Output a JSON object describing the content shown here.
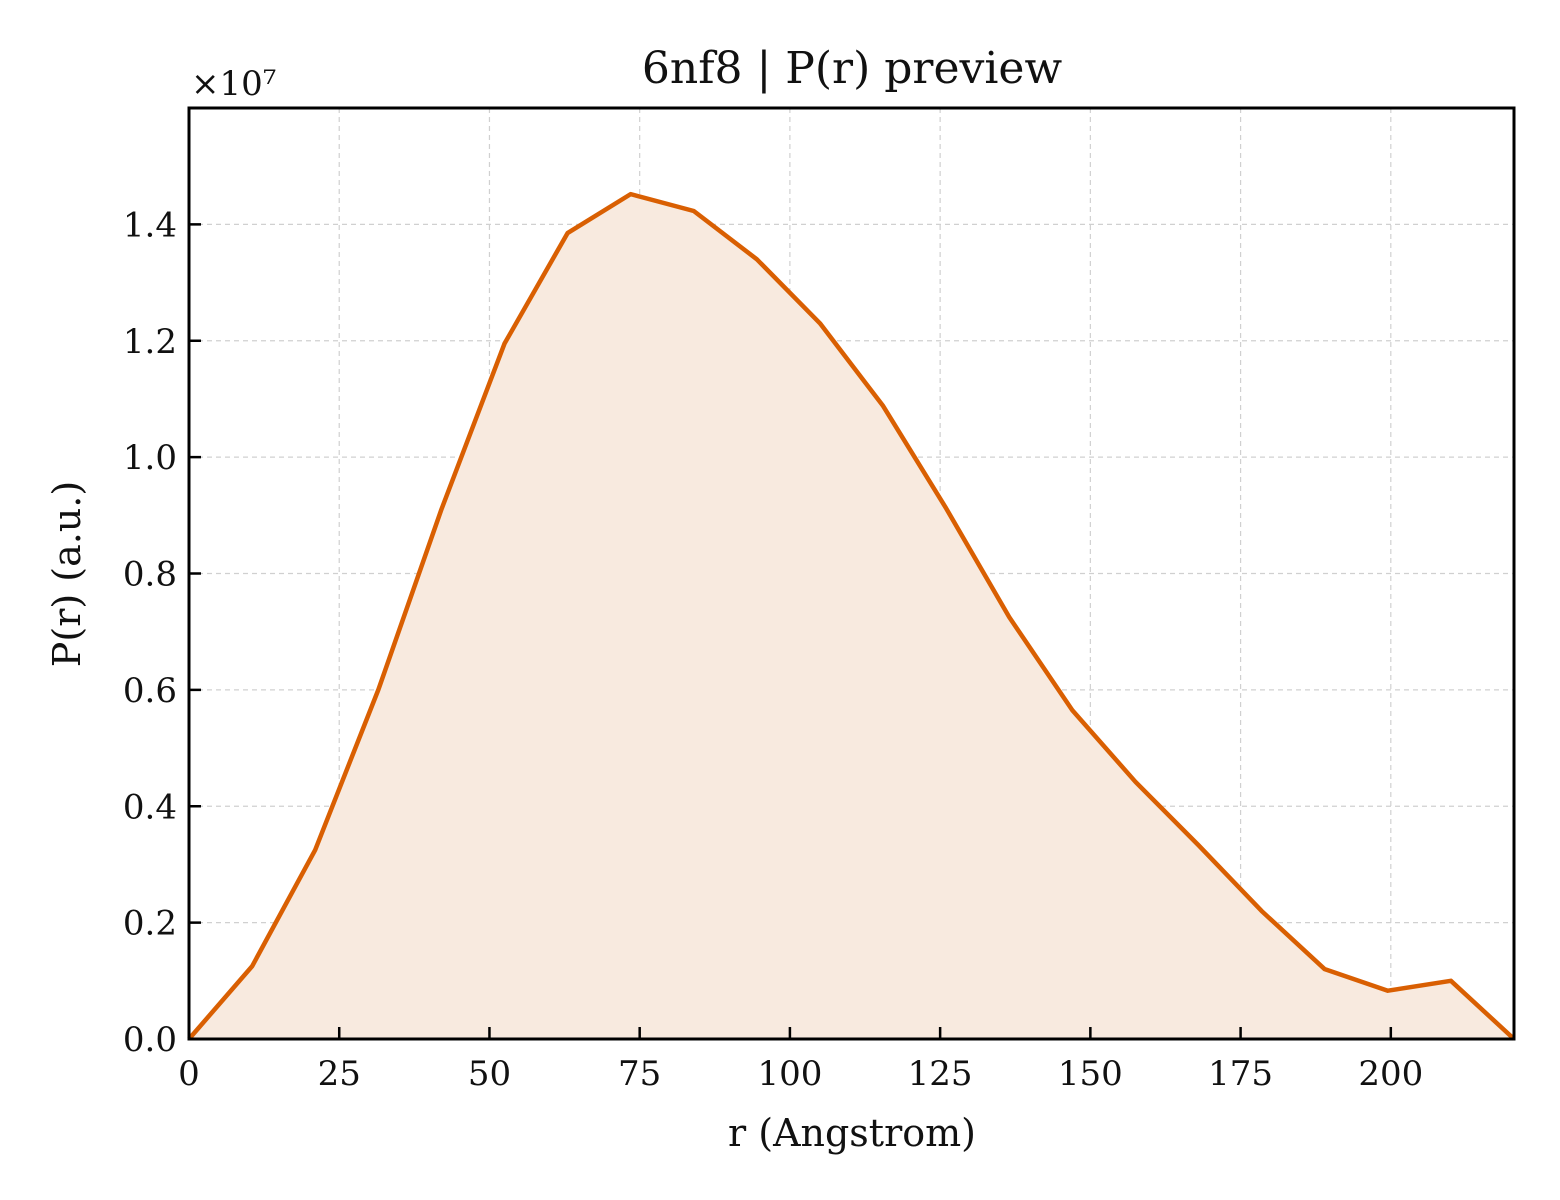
{
  "chart_data": {
    "type": "area",
    "title": "6nf8 | P(r) preview",
    "xlabel": "r (Angstrom)",
    "ylabel": "P(r) (a.u.)",
    "y_offset_text": "×10⁷",
    "xlim": [
      0,
      220.5
    ],
    "ylim": [
      0,
      1.6
    ],
    "x_ticks": [
      0,
      25,
      50,
      75,
      100,
      125,
      150,
      175,
      200
    ],
    "x_tick_labels": [
      "0",
      "25",
      "50",
      "75",
      "100",
      "125",
      "150",
      "175",
      "200"
    ],
    "y_ticks": [
      0.0,
      0.2,
      0.4,
      0.6,
      0.8,
      1.0,
      1.2,
      1.4
    ],
    "y_tick_labels": [
      "0.0",
      "0.2",
      "0.4",
      "0.6",
      "0.8",
      "1.0",
      "1.2",
      "1.4"
    ],
    "grid": true,
    "legend": "none",
    "series": [
      {
        "x": [
          0,
          10.5,
          21.0,
          31.5,
          42.0,
          52.5,
          63.0,
          73.5,
          84.0,
          94.5,
          105.0,
          115.5,
          126.0,
          136.5,
          147.0,
          157.5,
          168.0,
          178.5,
          189.0,
          199.5,
          210.0,
          220.5
        ],
        "y": [
          0.0,
          0.125,
          0.325,
          0.6,
          0.91,
          1.195,
          1.385,
          1.452,
          1.423,
          1.34,
          1.23,
          1.088,
          0.912,
          0.725,
          0.565,
          0.442,
          0.333,
          0.22,
          0.12,
          0.083,
          0.1,
          0.0
        ]
      }
    ],
    "colors": {
      "line": "#d95f02",
      "fill": "#f8eadf"
    }
  }
}
